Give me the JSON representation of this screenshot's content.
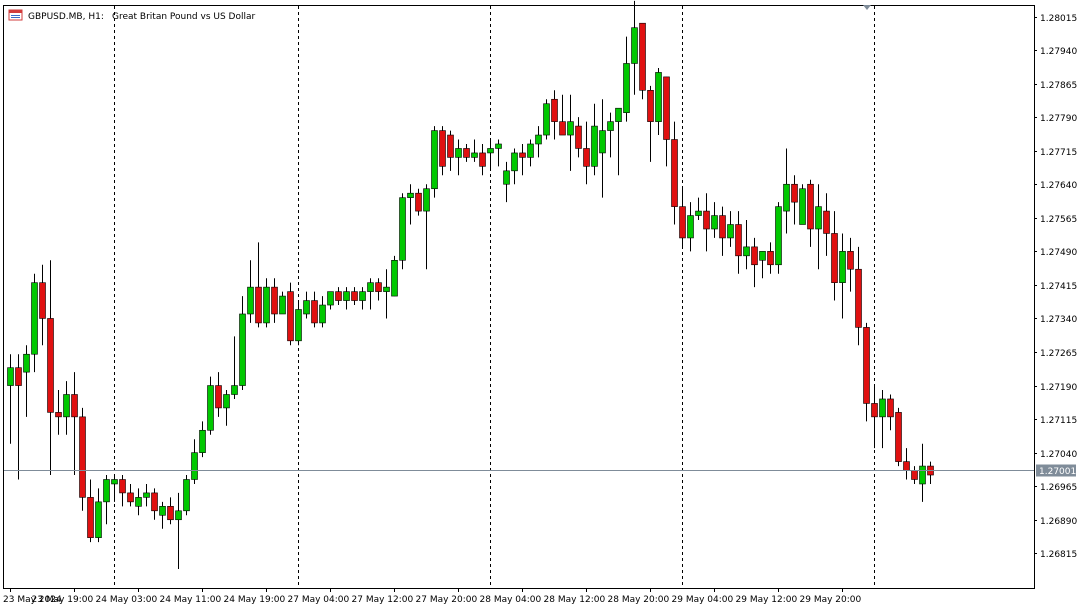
{
  "header": {
    "symbol": "GBPUSD.MB, H1:",
    "description": "Great Britan Pound vs US Dollar",
    "icon": "chart-window-icon"
  },
  "current_price_label": "1.27001",
  "colors": {
    "background": "#ffffff",
    "bull": "#00c800",
    "bear": "#e01010",
    "wick": "#000000",
    "grid": "#000000",
    "price_line": "#7f8c99",
    "price_tag_bg": "#7f8c99",
    "axis": "#000000"
  },
  "chart_data": {
    "type": "candlestick",
    "title": "GBPUSD.MB, H1: Great Britan Pound vs US Dollar",
    "ylim": [
      1.2677,
      1.2804
    ],
    "y_ticks": [
      "1.28015",
      "1.27940",
      "1.27865",
      "1.27790",
      "1.27715",
      "1.27640",
      "1.27565",
      "1.27490",
      "1.27415",
      "1.27340",
      "1.27265",
      "1.27190",
      "1.27115",
      "1.27040",
      "1.26965",
      "1.26890",
      "1.26815"
    ],
    "x_tick_labels": [
      "23 May 2024",
      "23 May 19:00",
      "24 May 03:00",
      "24 May 11:00",
      "24 May 19:00",
      "27 May 04:00",
      "27 May 12:00",
      "27 May 20:00",
      "28 May 04:00",
      "28 May 12:00",
      "28 May 20:00",
      "29 May 04:00",
      "29 May 12:00",
      "29 May 20:00"
    ],
    "x_tick_index": [
      0,
      8,
      16,
      24,
      32,
      40,
      48,
      56,
      64,
      72,
      80,
      88,
      96,
      104
    ],
    "separator_index": [
      13,
      36,
      60,
      84,
      108
    ],
    "grid": false,
    "current_price": 1.27001,
    "candles": [
      {
        "o": 1.2719,
        "h": 1.2726,
        "l": 1.2706,
        "c": 1.2723
      },
      {
        "o": 1.2723,
        "h": 1.2726,
        "l": 1.2698,
        "c": 1.2719
      },
      {
        "o": 1.2722,
        "h": 1.2728,
        "l": 1.2712,
        "c": 1.2726
      },
      {
        "o": 1.2726,
        "h": 1.2744,
        "l": 1.2722,
        "c": 1.2742
      },
      {
        "o": 1.2742,
        "h": 1.2746,
        "l": 1.2728,
        "c": 1.2734
      },
      {
        "o": 1.2734,
        "h": 1.2747,
        "l": 1.2699,
        "c": 1.2713
      },
      {
        "o": 1.2713,
        "h": 1.2718,
        "l": 1.2708,
        "c": 1.2712
      },
      {
        "o": 1.2712,
        "h": 1.272,
        "l": 1.2708,
        "c": 1.2717
      },
      {
        "o": 1.2717,
        "h": 1.2722,
        "l": 1.2699,
        "c": 1.2712
      },
      {
        "o": 1.2712,
        "h": 1.2714,
        "l": 1.2691,
        "c": 1.2694
      },
      {
        "o": 1.2694,
        "h": 1.2698,
        "l": 1.2684,
        "c": 1.2685
      },
      {
        "o": 1.2685,
        "h": 1.2696,
        "l": 1.2684,
        "c": 1.2693
      },
      {
        "o": 1.2693,
        "h": 1.2699,
        "l": 1.2688,
        "c": 1.2698
      },
      {
        "o": 1.2697,
        "h": 1.2699,
        "l": 1.2693,
        "c": 1.2698
      },
      {
        "o": 1.2698,
        "h": 1.2699,
        "l": 1.2692,
        "c": 1.2695
      },
      {
        "o": 1.2695,
        "h": 1.2697,
        "l": 1.2692,
        "c": 1.2693
      },
      {
        "o": 1.2692,
        "h": 1.2696,
        "l": 1.269,
        "c": 1.2694
      },
      {
        "o": 1.2694,
        "h": 1.2697,
        "l": 1.2692,
        "c": 1.2695
      },
      {
        "o": 1.2695,
        "h": 1.2696,
        "l": 1.2689,
        "c": 1.2691
      },
      {
        "o": 1.269,
        "h": 1.2693,
        "l": 1.2687,
        "c": 1.2692
      },
      {
        "o": 1.2692,
        "h": 1.2694,
        "l": 1.2688,
        "c": 1.2689
      },
      {
        "o": 1.2689,
        "h": 1.2695,
        "l": 1.2678,
        "c": 1.2691
      },
      {
        "o": 1.2691,
        "h": 1.2699,
        "l": 1.269,
        "c": 1.2698
      },
      {
        "o": 1.2698,
        "h": 1.2707,
        "l": 1.2697,
        "c": 1.2704
      },
      {
        "o": 1.2704,
        "h": 1.2711,
        "l": 1.2703,
        "c": 1.2709
      },
      {
        "o": 1.2709,
        "h": 1.2721,
        "l": 1.2708,
        "c": 1.2719
      },
      {
        "o": 1.2719,
        "h": 1.2722,
        "l": 1.2712,
        "c": 1.2714
      },
      {
        "o": 1.2714,
        "h": 1.2718,
        "l": 1.271,
        "c": 1.2717
      },
      {
        "o": 1.2717,
        "h": 1.273,
        "l": 1.2716,
        "c": 1.2719
      },
      {
        "o": 1.2719,
        "h": 1.2739,
        "l": 1.2718,
        "c": 1.2735
      },
      {
        "o": 1.2735,
        "h": 1.2747,
        "l": 1.2733,
        "c": 1.2741
      },
      {
        "o": 1.2741,
        "h": 1.2751,
        "l": 1.2732,
        "c": 1.2733
      },
      {
        "o": 1.2733,
        "h": 1.2743,
        "l": 1.2732,
        "c": 1.2741
      },
      {
        "o": 1.2741,
        "h": 1.2743,
        "l": 1.2733,
        "c": 1.2735
      },
      {
        "o": 1.2735,
        "h": 1.274,
        "l": 1.2735,
        "c": 1.2739
      },
      {
        "o": 1.274,
        "h": 1.2742,
        "l": 1.2728,
        "c": 1.2729
      },
      {
        "o": 1.2729,
        "h": 1.2738,
        "l": 1.2728,
        "c": 1.2736
      },
      {
        "o": 1.2735,
        "h": 1.274,
        "l": 1.2734,
        "c": 1.2738
      },
      {
        "o": 1.2738,
        "h": 1.274,
        "l": 1.2732,
        "c": 1.2733
      },
      {
        "o": 1.2733,
        "h": 1.2739,
        "l": 1.2732,
        "c": 1.2737
      },
      {
        "o": 1.2737,
        "h": 1.274,
        "l": 1.2736,
        "c": 1.274
      },
      {
        "o": 1.274,
        "h": 1.2741,
        "l": 1.2737,
        "c": 1.2738
      },
      {
        "o": 1.2738,
        "h": 1.2741,
        "l": 1.2736,
        "c": 1.274
      },
      {
        "o": 1.274,
        "h": 1.2741,
        "l": 1.2737,
        "c": 1.2738
      },
      {
        "o": 1.2738,
        "h": 1.2741,
        "l": 1.2736,
        "c": 1.274
      },
      {
        "o": 1.274,
        "h": 1.2743,
        "l": 1.2736,
        "c": 1.2742
      },
      {
        "o": 1.2742,
        "h": 1.2743,
        "l": 1.2738,
        "c": 1.274
      },
      {
        "o": 1.274,
        "h": 1.2745,
        "l": 1.2734,
        "c": 1.2741
      },
      {
        "o": 1.2739,
        "h": 1.2748,
        "l": 1.2739,
        "c": 1.2747
      },
      {
        "o": 1.2747,
        "h": 1.2762,
        "l": 1.2745,
        "c": 1.2761
      },
      {
        "o": 1.2761,
        "h": 1.2764,
        "l": 1.2755,
        "c": 1.2762
      },
      {
        "o": 1.2762,
        "h": 1.2763,
        "l": 1.2757,
        "c": 1.2758
      },
      {
        "o": 1.2758,
        "h": 1.2764,
        "l": 1.2745,
        "c": 1.2763
      },
      {
        "o": 1.2763,
        "h": 1.2777,
        "l": 1.2761,
        "c": 1.2776
      },
      {
        "o": 1.2776,
        "h": 1.2777,
        "l": 1.2766,
        "c": 1.2768
      },
      {
        "o": 1.2775,
        "h": 1.2776,
        "l": 1.2767,
        "c": 1.277
      },
      {
        "o": 1.277,
        "h": 1.2774,
        "l": 1.2766,
        "c": 1.2772
      },
      {
        "o": 1.2772,
        "h": 1.2773,
        "l": 1.2769,
        "c": 1.277
      },
      {
        "o": 1.277,
        "h": 1.2774,
        "l": 1.2769,
        "c": 1.2771
      },
      {
        "o": 1.2771,
        "h": 1.2773,
        "l": 1.2766,
        "c": 1.2768
      },
      {
        "o": 1.2771,
        "h": 1.2774,
        "l": 1.2767,
        "c": 1.2772
      },
      {
        "o": 1.2772,
        "h": 1.2774,
        "l": 1.2768,
        "c": 1.2773
      },
      {
        "o": 1.2764,
        "h": 1.2769,
        "l": 1.276,
        "c": 1.2767
      },
      {
        "o": 1.2767,
        "h": 1.2772,
        "l": 1.2764,
        "c": 1.2771
      },
      {
        "o": 1.2771,
        "h": 1.2773,
        "l": 1.2766,
        "c": 1.277
      },
      {
        "o": 1.277,
        "h": 1.2774,
        "l": 1.2768,
        "c": 1.2773
      },
      {
        "o": 1.2773,
        "h": 1.2777,
        "l": 1.277,
        "c": 1.2775
      },
      {
        "o": 1.2775,
        "h": 1.2783,
        "l": 1.2774,
        "c": 1.2782
      },
      {
        "o": 1.2783,
        "h": 1.2785,
        "l": 1.2774,
        "c": 1.2778
      },
      {
        "o": 1.2778,
        "h": 1.2784,
        "l": 1.2775,
        "c": 1.2775
      },
      {
        "o": 1.2775,
        "h": 1.2784,
        "l": 1.2767,
        "c": 1.2778
      },
      {
        "o": 1.2777,
        "h": 1.2779,
        "l": 1.277,
        "c": 1.2772
      },
      {
        "o": 1.2772,
        "h": 1.2778,
        "l": 1.2764,
        "c": 1.2768
      },
      {
        "o": 1.2768,
        "h": 1.2782,
        "l": 1.2766,
        "c": 1.2777
      },
      {
        "o": 1.2771,
        "h": 1.2783,
        "l": 1.2761,
        "c": 1.2776
      },
      {
        "o": 1.2776,
        "h": 1.278,
        "l": 1.277,
        "c": 1.2778
      },
      {
        "o": 1.2778,
        "h": 1.2781,
        "l": 1.2766,
        "c": 1.2781
      },
      {
        "o": 1.278,
        "h": 1.2797,
        "l": 1.2778,
        "c": 1.2791
      },
      {
        "o": 1.2791,
        "h": 1.2805,
        "l": 1.2784,
        "c": 1.2799
      },
      {
        "o": 1.28,
        "h": 1.28,
        "l": 1.2783,
        "c": 1.2785
      },
      {
        "o": 1.2785,
        "h": 1.2786,
        "l": 1.2769,
        "c": 1.2778
      },
      {
        "o": 1.2778,
        "h": 1.279,
        "l": 1.2775,
        "c": 1.2789
      },
      {
        "o": 1.2788,
        "h": 1.2788,
        "l": 1.2768,
        "c": 1.2774
      },
      {
        "o": 1.2774,
        "h": 1.2778,
        "l": 1.2755,
        "c": 1.2759
      },
      {
        "o": 1.2759,
        "h": 1.2763,
        "l": 1.275,
        "c": 1.2752
      },
      {
        "o": 1.2752,
        "h": 1.276,
        "l": 1.2749,
        "c": 1.2757
      },
      {
        "o": 1.2757,
        "h": 1.2761,
        "l": 1.2756,
        "c": 1.2758
      },
      {
        "o": 1.2758,
        "h": 1.2762,
        "l": 1.2749,
        "c": 1.2754
      },
      {
        "o": 1.2754,
        "h": 1.276,
        "l": 1.2752,
        "c": 1.2757
      },
      {
        "o": 1.2757,
        "h": 1.2759,
        "l": 1.2748,
        "c": 1.2752
      },
      {
        "o": 1.2752,
        "h": 1.2758,
        "l": 1.275,
        "c": 1.2755
      },
      {
        "o": 1.2755,
        "h": 1.2758,
        "l": 1.2744,
        "c": 1.2748
      },
      {
        "o": 1.2748,
        "h": 1.2756,
        "l": 1.2745,
        "c": 1.275
      },
      {
        "o": 1.275,
        "h": 1.2752,
        "l": 1.2741,
        "c": 1.2746
      },
      {
        "o": 1.2747,
        "h": 1.2749,
        "l": 1.2743,
        "c": 1.2749
      },
      {
        "o": 1.2749,
        "h": 1.2751,
        "l": 1.2744,
        "c": 1.2746
      },
      {
        "o": 1.2746,
        "h": 1.276,
        "l": 1.2744,
        "c": 1.2759
      },
      {
        "o": 1.2758,
        "h": 1.2772,
        "l": 1.2753,
        "c": 1.2764
      },
      {
        "o": 1.2764,
        "h": 1.2766,
        "l": 1.2755,
        "c": 1.276
      },
      {
        "o": 1.2755,
        "h": 1.2764,
        "l": 1.2755,
        "c": 1.2763
      },
      {
        "o": 1.2764,
        "h": 1.2765,
        "l": 1.275,
        "c": 1.2754
      },
      {
        "o": 1.2754,
        "h": 1.2764,
        "l": 1.2745,
        "c": 1.2759
      },
      {
        "o": 1.2758,
        "h": 1.2762,
        "l": 1.2748,
        "c": 1.2753
      },
      {
        "o": 1.2753,
        "h": 1.2758,
        "l": 1.2738,
        "c": 1.2742
      },
      {
        "o": 1.2742,
        "h": 1.2753,
        "l": 1.2734,
        "c": 1.2749
      },
      {
        "o": 1.2749,
        "h": 1.2752,
        "l": 1.274,
        "c": 1.2745
      },
      {
        "o": 1.2745,
        "h": 1.275,
        "l": 1.2728,
        "c": 1.2732
      },
      {
        "o": 1.2732,
        "h": 1.2733,
        "l": 1.2711,
        "c": 1.2715
      },
      {
        "o": 1.2715,
        "h": 1.2719,
        "l": 1.2705,
        "c": 1.2712
      },
      {
        "o": 1.2712,
        "h": 1.2718,
        "l": 1.2705,
        "c": 1.2716
      },
      {
        "o": 1.2716,
        "h": 1.2717,
        "l": 1.2709,
        "c": 1.2712
      },
      {
        "o": 1.2713,
        "h": 1.2714,
        "l": 1.2701,
        "c": 1.2702
      },
      {
        "o": 1.2702,
        "h": 1.2705,
        "l": 1.2698,
        "c": 1.27
      },
      {
        "o": 1.27,
        "h": 1.2701,
        "l": 1.2697,
        "c": 1.2698
      },
      {
        "o": 1.2697,
        "h": 1.2706,
        "l": 1.2693,
        "c": 1.2701
      },
      {
        "o": 1.2701,
        "h": 1.2702,
        "l": 1.2697,
        "c": 1.2699
      }
    ]
  }
}
